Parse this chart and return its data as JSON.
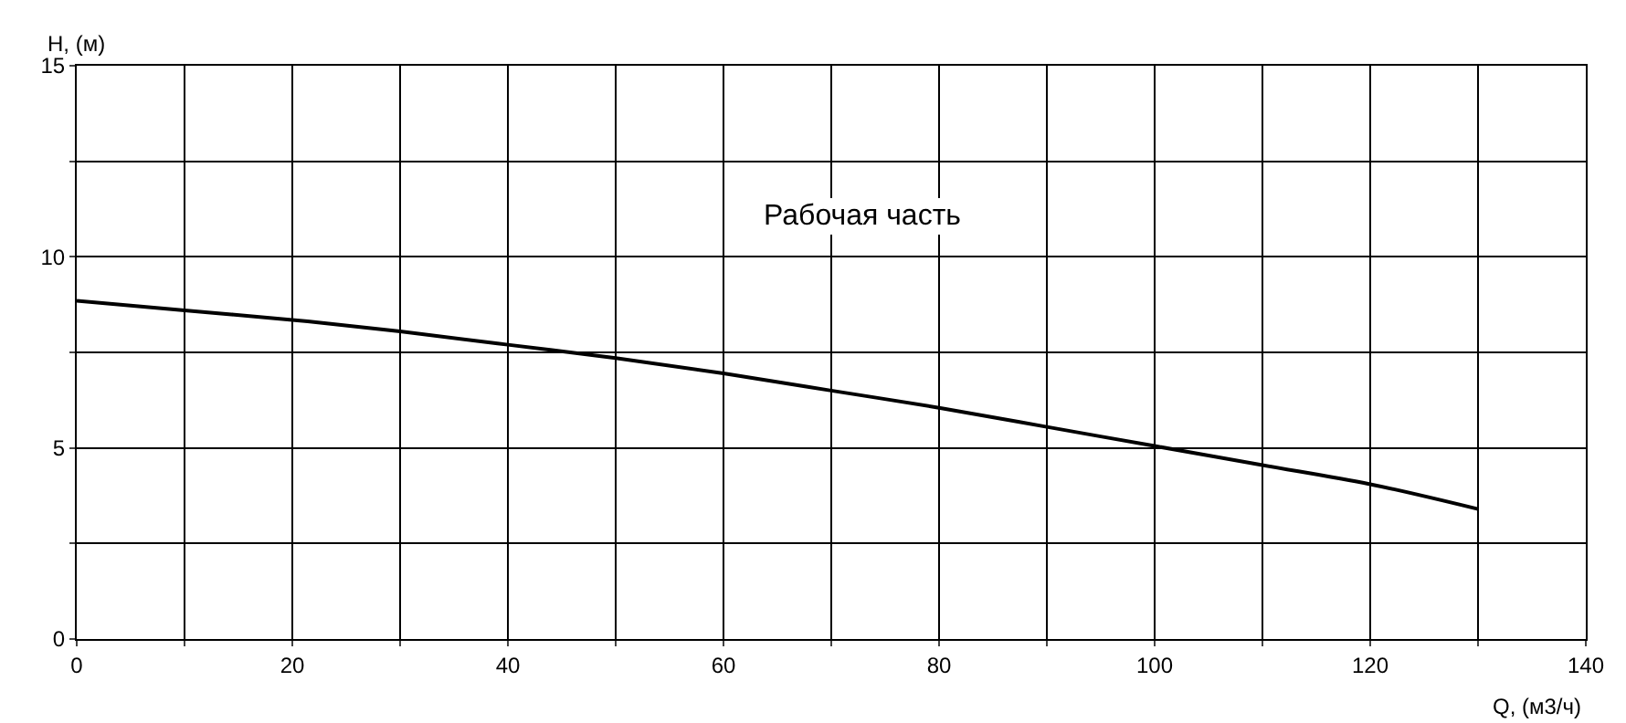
{
  "chart_data": {
    "type": "line",
    "xlabel": "Q, (м3/ч)",
    "ylabel": "H, (м)",
    "annotations": [
      "Рабочая часть"
    ],
    "x": [
      0,
      10,
      20,
      30,
      40,
      50,
      60,
      70,
      80,
      90,
      100,
      110,
      120,
      130
    ],
    "series": [
      {
        "color": "#000000",
        "values": [
          8.85,
          8.6,
          8.35,
          8.05,
          7.7,
          7.35,
          6.95,
          6.5,
          6.05,
          5.55,
          5.05,
          4.55,
          4.05,
          3.4
        ]
      }
    ],
    "xlim": [
      0,
      140
    ],
    "ylim": [
      0,
      15
    ],
    "xticks": [
      0,
      {
        "value": 10,
        "label": null
      },
      20,
      {
        "value": 30,
        "label": null
      },
      40,
      {
        "value": 50,
        "label": null
      },
      60,
      {
        "value": 70,
        "label": null
      },
      80,
      {
        "value": 90,
        "label": null
      },
      100,
      {
        "value": 110,
        "label": null
      },
      120,
      {
        "value": 130,
        "label": null
      },
      140
    ],
    "yticks": [
      0,
      {
        "value": 2.5,
        "label": null
      },
      5,
      {
        "value": 7.5,
        "label": null
      },
      10,
      {
        "value": 12.5,
        "label": null
      },
      15
    ],
    "grid": true,
    "marker": "none",
    "line_style": "solid"
  }
}
